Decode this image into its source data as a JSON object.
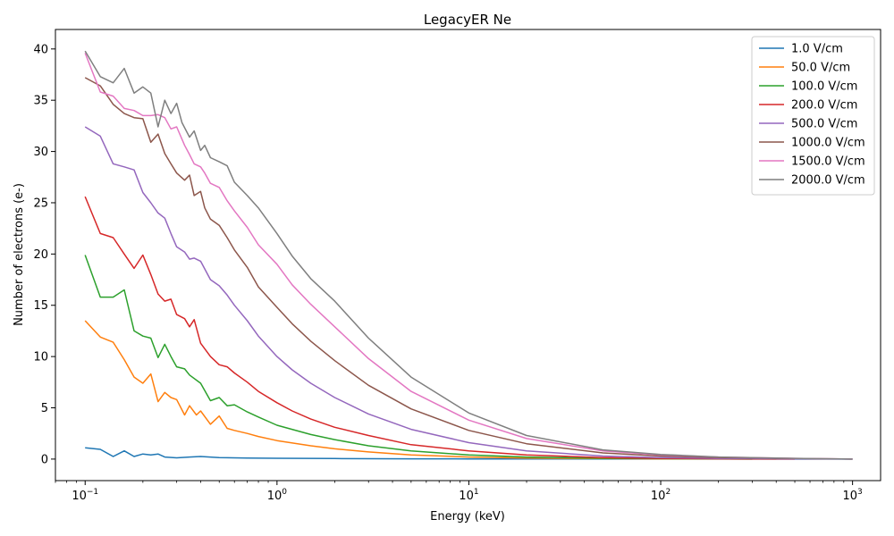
{
  "chart_data": {
    "type": "line",
    "title": "LegacyER Ne",
    "xlabel": "Energy (keV)",
    "ylabel": "Number of electrons (e-)",
    "xscale": "log",
    "xlim": [
      0.07,
      1400
    ],
    "ylim": [
      -2.1,
      41.9
    ],
    "x_ticks": [
      0.1,
      1,
      10,
      100,
      1000
    ],
    "x_tick_labels": [
      {
        "base": "10",
        "exp": "−1"
      },
      {
        "base": "10",
        "exp": "0"
      },
      {
        "base": "10",
        "exp": "1"
      },
      {
        "base": "10",
        "exp": "2"
      },
      {
        "base": "10",
        "exp": "3"
      }
    ],
    "y_ticks": [
      0,
      5,
      10,
      15,
      20,
      25,
      30,
      35,
      40
    ],
    "y_tick_labels": [
      "0",
      "5",
      "10",
      "15",
      "20",
      "25",
      "30",
      "35",
      "40"
    ],
    "grid": false,
    "legend_position": "top-right",
    "series": [
      {
        "name": "1.0 V/cm",
        "color": "#1f77b4",
        "x": [
          0.1,
          0.12,
          0.14,
          0.16,
          0.18,
          0.2,
          0.22,
          0.24,
          0.26,
          0.3,
          0.35,
          0.4,
          0.5,
          0.7,
          1,
          2,
          5,
          10,
          100,
          1000
        ],
        "y": [
          1.1,
          0.95,
          0.25,
          0.8,
          0.25,
          0.5,
          0.4,
          0.5,
          0.2,
          0.12,
          0.2,
          0.25,
          0.15,
          0.1,
          0.08,
          0.05,
          0.03,
          0.02,
          0.01,
          0.0
        ]
      },
      {
        "name": "50.0 V/cm",
        "color": "#ff7f0e",
        "x": [
          0.1,
          0.12,
          0.14,
          0.16,
          0.18,
          0.2,
          0.22,
          0.24,
          0.26,
          0.28,
          0.3,
          0.33,
          0.35,
          0.38,
          0.4,
          0.45,
          0.5,
          0.55,
          0.6,
          0.7,
          0.8,
          1,
          1.5,
          2,
          3,
          5,
          10,
          20,
          50,
          100,
          200,
          400
        ],
        "y": [
          13.5,
          11.9,
          11.4,
          9.7,
          8.0,
          7.4,
          8.3,
          5.6,
          6.5,
          6.0,
          5.8,
          4.3,
          5.2,
          4.3,
          4.7,
          3.4,
          4.2,
          3.0,
          2.8,
          2.5,
          2.2,
          1.8,
          1.3,
          1.0,
          0.7,
          0.4,
          0.2,
          0.1,
          0.05,
          0.03,
          0.01,
          0.0
        ]
      },
      {
        "name": "100.0 V/cm",
        "color": "#2ca02c",
        "x": [
          0.1,
          0.12,
          0.14,
          0.16,
          0.18,
          0.2,
          0.22,
          0.24,
          0.26,
          0.28,
          0.3,
          0.33,
          0.35,
          0.4,
          0.45,
          0.5,
          0.55,
          0.6,
          0.7,
          0.8,
          1,
          1.5,
          2,
          3,
          5,
          10,
          20,
          50,
          100,
          300
        ],
        "y": [
          19.9,
          15.8,
          15.8,
          16.5,
          12.5,
          12.0,
          11.8,
          9.9,
          11.2,
          10.0,
          9.0,
          8.8,
          8.2,
          7.4,
          5.7,
          6.0,
          5.2,
          5.3,
          4.6,
          4.1,
          3.3,
          2.4,
          1.9,
          1.3,
          0.8,
          0.4,
          0.2,
          0.08,
          0.04,
          0.0
        ]
      },
      {
        "name": "200.0 V/cm",
        "color": "#d62728",
        "x": [
          0.1,
          0.12,
          0.14,
          0.16,
          0.18,
          0.2,
          0.22,
          0.24,
          0.26,
          0.28,
          0.3,
          0.33,
          0.35,
          0.37,
          0.4,
          0.45,
          0.5,
          0.55,
          0.6,
          0.7,
          0.8,
          1,
          1.2,
          1.5,
          2,
          3,
          5,
          10,
          20,
          50,
          100,
          200,
          500
        ],
        "y": [
          25.6,
          22.0,
          21.6,
          20.0,
          18.6,
          19.9,
          18.0,
          16.1,
          15.4,
          15.6,
          14.1,
          13.7,
          12.9,
          13.6,
          11.3,
          10.0,
          9.2,
          9.0,
          8.4,
          7.5,
          6.6,
          5.5,
          4.7,
          3.9,
          3.1,
          2.3,
          1.4,
          0.8,
          0.4,
          0.15,
          0.07,
          0.03,
          0.0
        ]
      },
      {
        "name": "500.0 V/cm",
        "color": "#9467bd",
        "x": [
          0.1,
          0.12,
          0.14,
          0.16,
          0.18,
          0.2,
          0.22,
          0.24,
          0.26,
          0.28,
          0.3,
          0.33,
          0.35,
          0.37,
          0.4,
          0.45,
          0.5,
          0.55,
          0.6,
          0.7,
          0.8,
          1,
          1.2,
          1.5,
          2,
          3,
          5,
          10,
          20,
          50,
          100,
          200,
          500,
          1000
        ],
        "y": [
          32.4,
          31.5,
          28.8,
          28.5,
          28.2,
          26.0,
          25.0,
          24.0,
          23.5,
          22.0,
          20.7,
          20.2,
          19.5,
          19.6,
          19.3,
          17.5,
          16.9,
          16.0,
          15.0,
          13.5,
          12.0,
          10.0,
          8.7,
          7.4,
          6.0,
          4.4,
          2.9,
          1.6,
          0.8,
          0.3,
          0.15,
          0.07,
          0.03,
          0.0
        ]
      },
      {
        "name": "1000.0 V/cm",
        "color": "#8c564b",
        "x": [
          0.1,
          0.12,
          0.14,
          0.16,
          0.18,
          0.2,
          0.22,
          0.24,
          0.26,
          0.28,
          0.3,
          0.33,
          0.35,
          0.37,
          0.4,
          0.42,
          0.45,
          0.5,
          0.55,
          0.6,
          0.7,
          0.8,
          1,
          1.2,
          1.5,
          2,
          3,
          5,
          10,
          20,
          50,
          100,
          200,
          500,
          1000
        ],
        "y": [
          37.2,
          36.4,
          34.6,
          33.7,
          33.3,
          33.2,
          30.9,
          31.7,
          29.8,
          28.8,
          27.9,
          27.2,
          27.7,
          25.7,
          26.1,
          24.5,
          23.4,
          22.8,
          21.6,
          20.4,
          18.7,
          16.8,
          14.8,
          13.2,
          11.5,
          9.6,
          7.2,
          4.9,
          2.8,
          1.5,
          0.6,
          0.3,
          0.15,
          0.05,
          0.0
        ]
      },
      {
        "name": "1500.0 V/cm",
        "color": "#e377c2",
        "x": [
          0.1,
          0.12,
          0.14,
          0.16,
          0.18,
          0.2,
          0.22,
          0.24,
          0.26,
          0.28,
          0.3,
          0.33,
          0.35,
          0.37,
          0.4,
          0.42,
          0.45,
          0.5,
          0.55,
          0.6,
          0.7,
          0.8,
          1,
          1.2,
          1.5,
          2,
          3,
          5,
          10,
          20,
          50,
          100,
          200,
          500,
          1000
        ],
        "y": [
          39.6,
          35.8,
          35.4,
          34.2,
          34.0,
          33.5,
          33.5,
          33.6,
          33.3,
          32.2,
          32.4,
          30.6,
          29.7,
          28.8,
          28.5,
          27.9,
          26.9,
          26.5,
          25.2,
          24.2,
          22.6,
          20.9,
          19.0,
          17.0,
          15.1,
          12.9,
          9.8,
          6.6,
          3.8,
          2.0,
          0.8,
          0.4,
          0.2,
          0.07,
          0.0
        ]
      },
      {
        "name": "2000.0 V/cm",
        "color": "#7f7f7f",
        "x": [
          0.1,
          0.12,
          0.14,
          0.16,
          0.18,
          0.2,
          0.22,
          0.24,
          0.26,
          0.28,
          0.3,
          0.32,
          0.35,
          0.37,
          0.4,
          0.42,
          0.45,
          0.5,
          0.55,
          0.6,
          0.7,
          0.8,
          1,
          1.2,
          1.5,
          2,
          3,
          5,
          10,
          20,
          50,
          100,
          200,
          500,
          1000
        ],
        "y": [
          39.8,
          37.3,
          36.7,
          38.1,
          35.7,
          36.3,
          35.7,
          32.4,
          35.0,
          33.7,
          34.7,
          32.8,
          31.4,
          32.0,
          30.1,
          30.6,
          29.4,
          29.0,
          28.6,
          27.0,
          25.7,
          24.5,
          22.0,
          19.8,
          17.6,
          15.4,
          11.8,
          8.0,
          4.5,
          2.3,
          0.9,
          0.45,
          0.2,
          0.07,
          0.0
        ]
      }
    ]
  }
}
